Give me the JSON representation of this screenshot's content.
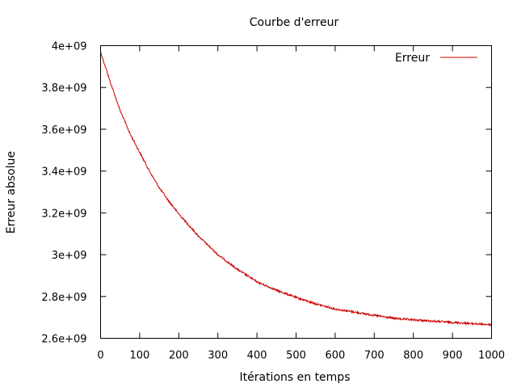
{
  "chart_data": {
    "type": "line",
    "title": "Courbe d'erreur",
    "xlabel": "Itérations en temps",
    "ylabel": "Erreur absolue",
    "xlim": [
      0,
      1000
    ],
    "ylim": [
      2600000000,
      4000000000
    ],
    "x_ticks": [
      0,
      100,
      200,
      300,
      400,
      500,
      600,
      700,
      800,
      900,
      1000
    ],
    "x_tick_labels": [
      "0",
      "100",
      "200",
      "300",
      "400",
      "500",
      "600",
      "700",
      "800",
      "900",
      "1000"
    ],
    "y_ticks": [
      2600000000,
      2800000000,
      3000000000,
      3200000000,
      3400000000,
      3600000000,
      3800000000,
      4000000000
    ],
    "y_tick_labels": [
      "2.6e+09",
      "2.8e+09",
      "3e+09",
      "3.2e+09",
      "3.4e+09",
      "3.6e+09",
      "3.8e+09",
      "4e+09"
    ],
    "grid": false,
    "legend_position": "top-right",
    "series": [
      {
        "name": "Erreur",
        "color": "#cc0000",
        "x": [
          0,
          25,
          50,
          75,
          100,
          125,
          150,
          175,
          200,
          250,
          300,
          350,
          400,
          450,
          500,
          550,
          600,
          650,
          700,
          750,
          800,
          850,
          900,
          950,
          1000
        ],
        "y": [
          3970000000,
          3825000000,
          3690000000,
          3580000000,
          3490000000,
          3400000000,
          3320000000,
          3255000000,
          3195000000,
          3090000000,
          3000000000,
          2930000000,
          2870000000,
          2830000000,
          2795000000,
          2765000000,
          2740000000,
          2725000000,
          2710000000,
          2695000000,
          2688000000,
          2682000000,
          2676000000,
          2670000000,
          2665000000
        ]
      }
    ]
  }
}
